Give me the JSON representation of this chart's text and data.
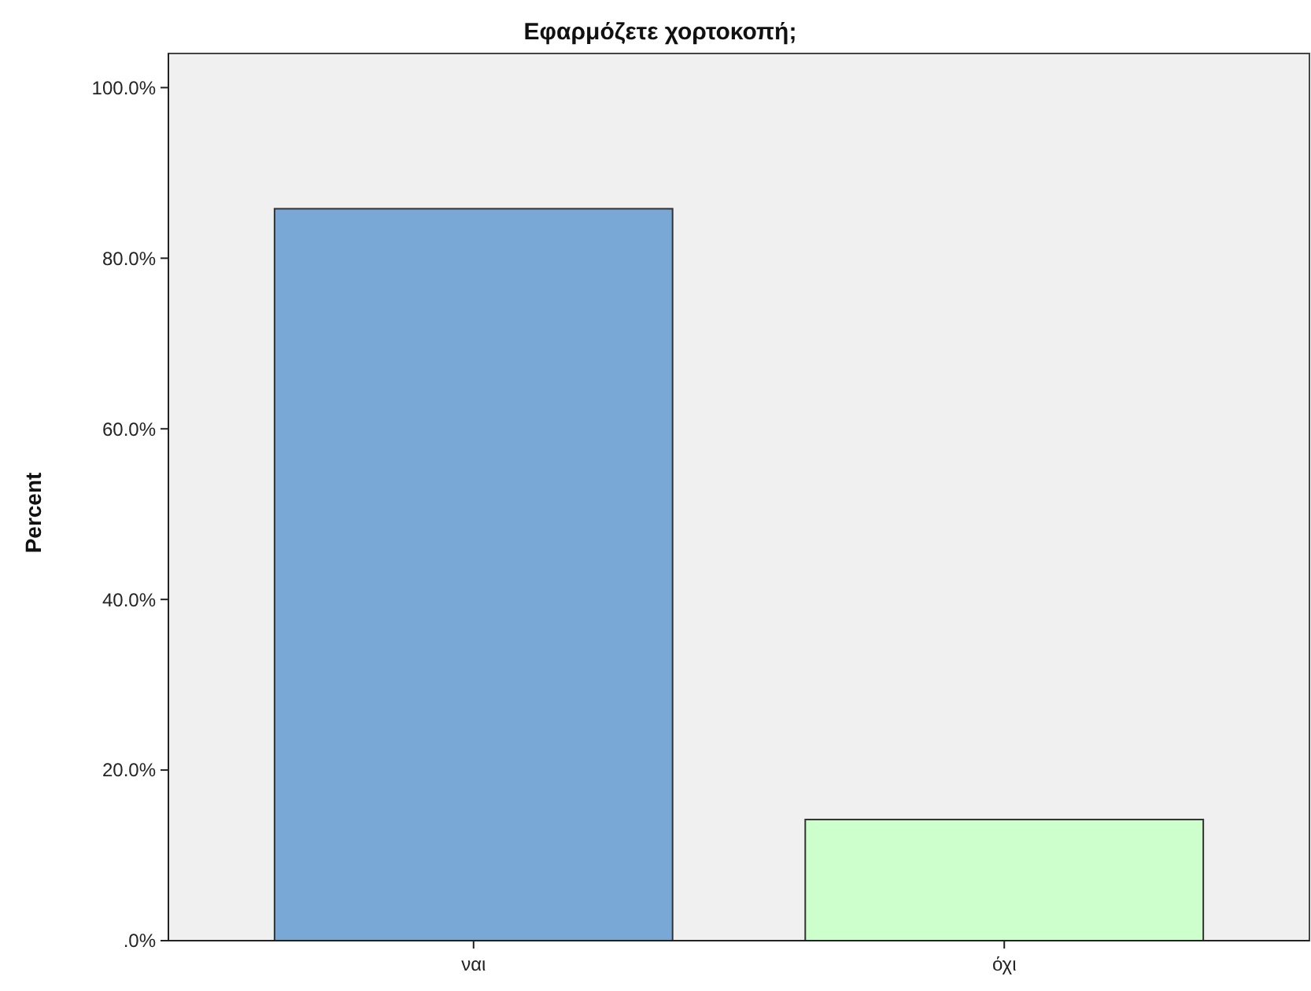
{
  "chart_data": {
    "type": "bar",
    "title": "Εφαρμόζετε χορτοκοπή;",
    "ylabel": "Percent",
    "categories": [
      "ναι",
      "όχι"
    ],
    "values": [
      85.8,
      14.2
    ],
    "colors": [
      "#7aa8d6",
      "#ccffcc"
    ],
    "ylim": [
      0,
      104
    ],
    "yticks": [
      {
        "value": 0,
        "label": ".0%"
      },
      {
        "value": 20,
        "label": "20.0%"
      },
      {
        "value": 40,
        "label": "40.0%"
      },
      {
        "value": 60,
        "label": "60.0%"
      },
      {
        "value": 80,
        "label": "80.0%"
      },
      {
        "value": 100,
        "label": "100.0%"
      }
    ],
    "grid": false
  }
}
